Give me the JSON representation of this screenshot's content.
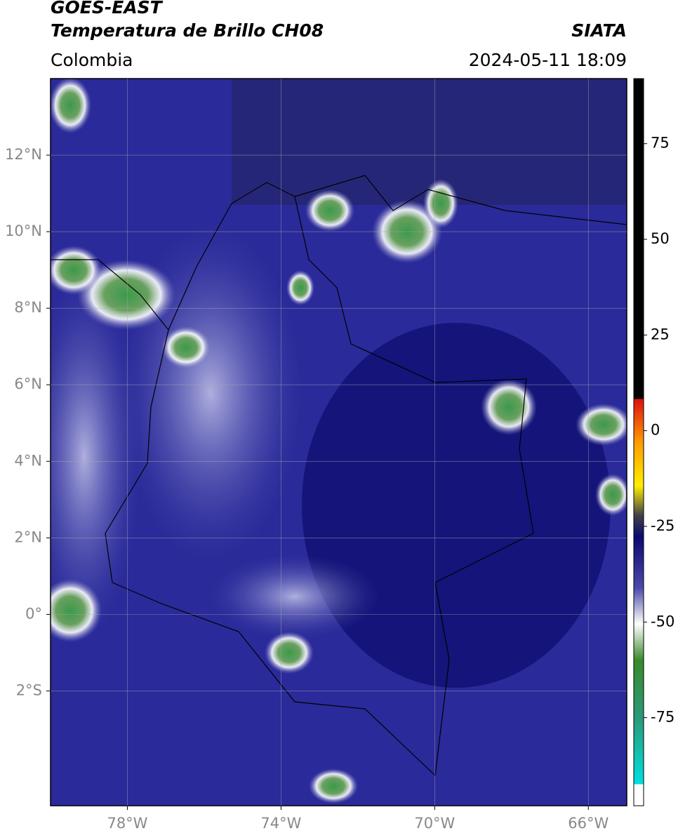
{
  "header": {
    "title": "GOES-EAST",
    "subtitle": "Temperatura de Brillo CH08",
    "source": "SIATA",
    "region": "Colombia",
    "timestamp": "2024-05-11 18:09"
  },
  "map": {
    "xlim": [
      -80,
      -65
    ],
    "ylim": [
      -5,
      14
    ],
    "xticks": [
      {
        "value": -78,
        "label": "78°W"
      },
      {
        "value": -74,
        "label": "74°W"
      },
      {
        "value": -70,
        "label": "70°W"
      },
      {
        "value": -66,
        "label": "66°W"
      }
    ],
    "yticks": [
      {
        "value": 12,
        "label": "12°N"
      },
      {
        "value": 10,
        "label": "10°N"
      },
      {
        "value": 8,
        "label": "8°N"
      },
      {
        "value": 6,
        "label": "6°N"
      },
      {
        "value": 4,
        "label": "4°N"
      },
      {
        "value": 2,
        "label": "2°N"
      },
      {
        "value": 0,
        "label": "0°"
      },
      {
        "value": -2,
        "label": "2°S"
      }
    ],
    "grid": true
  },
  "colorbar": {
    "lim": [
      -98,
      92
    ],
    "ticks": [
      75,
      50,
      25,
      0,
      -25,
      -50,
      -75
    ]
  }
}
